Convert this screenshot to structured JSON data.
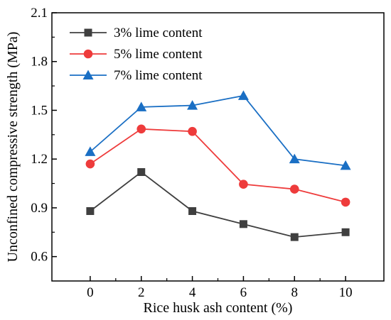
{
  "chart_data": {
    "type": "line",
    "title": "",
    "xlabel": "Rice husk ash content (%)",
    "ylabel": "Unconfined compressive strength (MPa)",
    "x": [
      0,
      2,
      4,
      6,
      8,
      10
    ],
    "xlim": [
      -1.5,
      11.5
    ],
    "ylim": [
      0.45,
      2.1
    ],
    "x_ticks": [
      "0",
      "2",
      "4",
      "6",
      "8",
      "10"
    ],
    "y_ticks": [
      "0.6",
      "0.9",
      "1.2",
      "1.5",
      "1.8",
      "2.1"
    ],
    "legend_position": "top-left",
    "grid": false,
    "series": [
      {
        "name": "3% lime content",
        "marker": "square",
        "color": "#3f3f3f",
        "values": [
          0.88,
          1.12,
          0.88,
          0.8,
          0.72,
          0.75
        ]
      },
      {
        "name": "5% lime content",
        "marker": "circle",
        "color": "#ee3b3b",
        "values": [
          1.17,
          1.385,
          1.37,
          1.045,
          1.015,
          0.935
        ]
      },
      {
        "name": "7% lime content",
        "marker": "triangle",
        "color": "#1a6fc4",
        "values": [
          1.245,
          1.52,
          1.53,
          1.59,
          1.2,
          1.16
        ]
      }
    ]
  }
}
